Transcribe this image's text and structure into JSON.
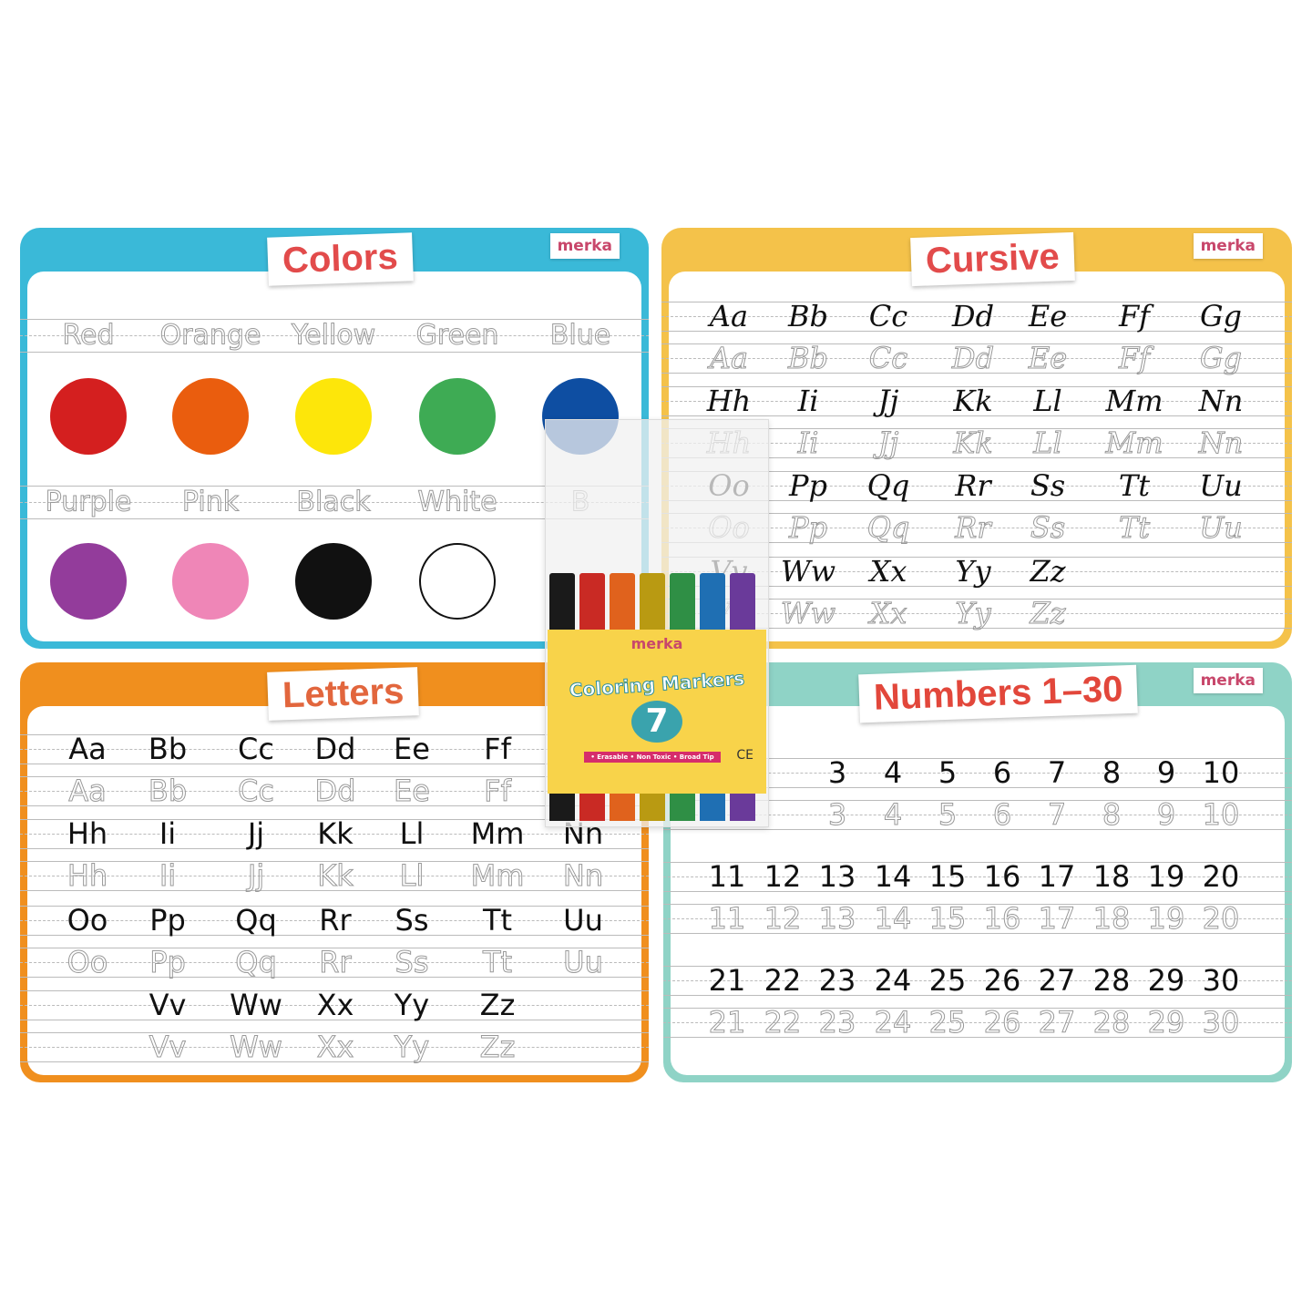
{
  "brand": "merka",
  "colors_mat": {
    "title": "Colors",
    "accent": "#3ab9d8",
    "row1": [
      {
        "label": "Red",
        "color": "#d41f1f"
      },
      {
        "label": "Orange",
        "color": "#ea5d0e"
      },
      {
        "label": "Yellow",
        "color": "#fde60a"
      },
      {
        "label": "Green",
        "color": "#3eab54"
      },
      {
        "label": "Blue",
        "color": "#0e4ea2"
      }
    ],
    "row2": [
      {
        "label": "Purple",
        "color": "#933c9b"
      },
      {
        "label": "Pink",
        "color": "#ef86b7"
      },
      {
        "label": "Black",
        "color": "#111111"
      },
      {
        "label": "White",
        "color": "#ffffff"
      },
      {
        "label": "B",
        "color": ""
      }
    ]
  },
  "cursive_mat": {
    "title": "Cursive",
    "accent": "#f4c24a",
    "rows": [
      [
        "Aa",
        "Bb",
        "Cc",
        "Dd",
        "Ee",
        "Ff",
        "Gg"
      ],
      [
        "Hh",
        "Ii",
        "Jj",
        "Kk",
        "Ll",
        "Mm",
        "Nn"
      ],
      [
        "Oo",
        "Pp",
        "Qq",
        "Rr",
        "Ss",
        "Tt",
        "Uu"
      ],
      [
        "Vv",
        "Ww",
        "Xx",
        "Yy",
        "Zz"
      ]
    ]
  },
  "letters_mat": {
    "title": "Letters",
    "accent": "#f08f1e",
    "rows": [
      [
        "Aa",
        "Bb",
        "Cc",
        "Dd",
        "Ee",
        "Ff"
      ],
      [
        "Hh",
        "Ii",
        "Jj",
        "Kk",
        "Ll",
        "Mm",
        "Nn"
      ],
      [
        "Oo",
        "Pp",
        "Qq",
        "Rr",
        "Ss",
        "Tt",
        "Uu"
      ],
      [
        "",
        "Vv",
        "Ww",
        "Xx",
        "Yy",
        "Zz"
      ]
    ]
  },
  "numbers_mat": {
    "title": "Numbers 1–30",
    "accent": "#8fd3c6",
    "rows": [
      [
        "",
        "",
        "3",
        "4",
        "5",
        "6",
        "7",
        "8",
        "9",
        "10"
      ],
      [
        "11",
        "12",
        "13",
        "14",
        "15",
        "16",
        "17",
        "18",
        "19",
        "20"
      ],
      [
        "21",
        "22",
        "23",
        "24",
        "25",
        "26",
        "27",
        "28",
        "29",
        "30"
      ]
    ]
  },
  "marker_pack": {
    "brand": "merka",
    "title": "Coloring Markers",
    "count": "7",
    "features": "• Erasable  • Non Toxic  • Broad Tip",
    "mark": "CE",
    "marker_colors": [
      "#1a1a1a",
      "#c92a24",
      "#e0621d",
      "#b99a12",
      "#2f8f45",
      "#1f6fb3",
      "#6a3a9a"
    ]
  }
}
